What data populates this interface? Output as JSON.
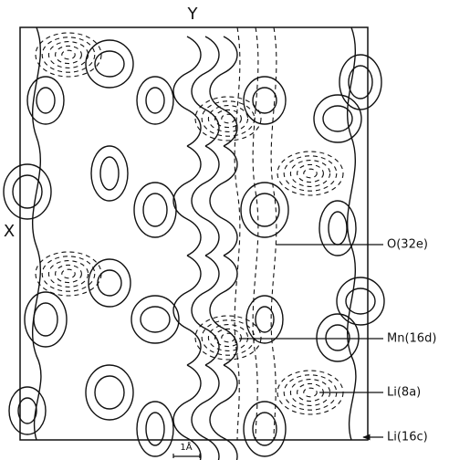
{
  "axes": {
    "y": "Y",
    "x": "X"
  },
  "labels": [
    "O(32e)",
    "Mn(16d)",
    "Li(8a)",
    "Li(16c)"
  ],
  "scale_bar": "1Å"
}
